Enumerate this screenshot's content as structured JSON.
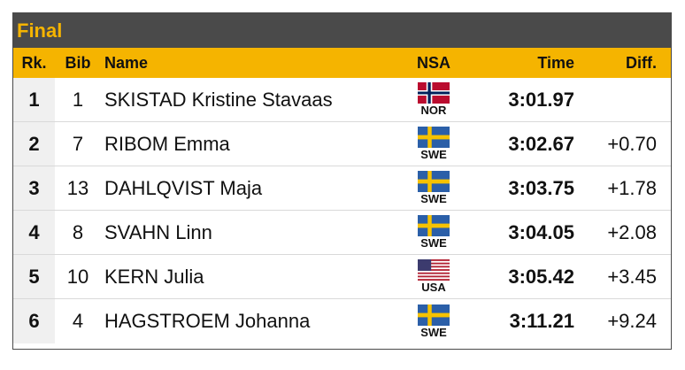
{
  "title": "Final",
  "headers": {
    "rank": "Rk.",
    "bib": "Bib",
    "name": "Name",
    "nsa": "NSA",
    "time": "Time",
    "diff": "Diff."
  },
  "rows": [
    {
      "rank": "1",
      "bib": "1",
      "name": "SKISTAD Kristine Stavaas",
      "nsa": "NOR",
      "flag": "norway-flag-icon",
      "time": "3:01.97",
      "diff": ""
    },
    {
      "rank": "2",
      "bib": "7",
      "name": "RIBOM Emma",
      "nsa": "SWE",
      "flag": "sweden-flag-icon",
      "time": "3:02.67",
      "diff": "+0.70"
    },
    {
      "rank": "3",
      "bib": "13",
      "name": "DAHLQVIST Maja",
      "nsa": "SWE",
      "flag": "sweden-flag-icon",
      "time": "3:03.75",
      "diff": "+1.78"
    },
    {
      "rank": "4",
      "bib": "8",
      "name": "SVAHN Linn",
      "nsa": "SWE",
      "flag": "sweden-flag-icon",
      "time": "3:04.05",
      "diff": "+2.08"
    },
    {
      "rank": "5",
      "bib": "10",
      "name": "KERN Julia",
      "nsa": "USA",
      "flag": "usa-flag-icon",
      "time": "3:05.42",
      "diff": "+3.45"
    },
    {
      "rank": "6",
      "bib": "4",
      "name": "HAGSTROEM Johanna",
      "nsa": "SWE",
      "flag": "sweden-flag-icon",
      "time": "3:11.21",
      "diff": "+9.24"
    }
  ],
  "colors": {
    "header_bg": "#4a4a4a",
    "accent": "#f5b400",
    "rank_bg": "#f0f0f0"
  }
}
